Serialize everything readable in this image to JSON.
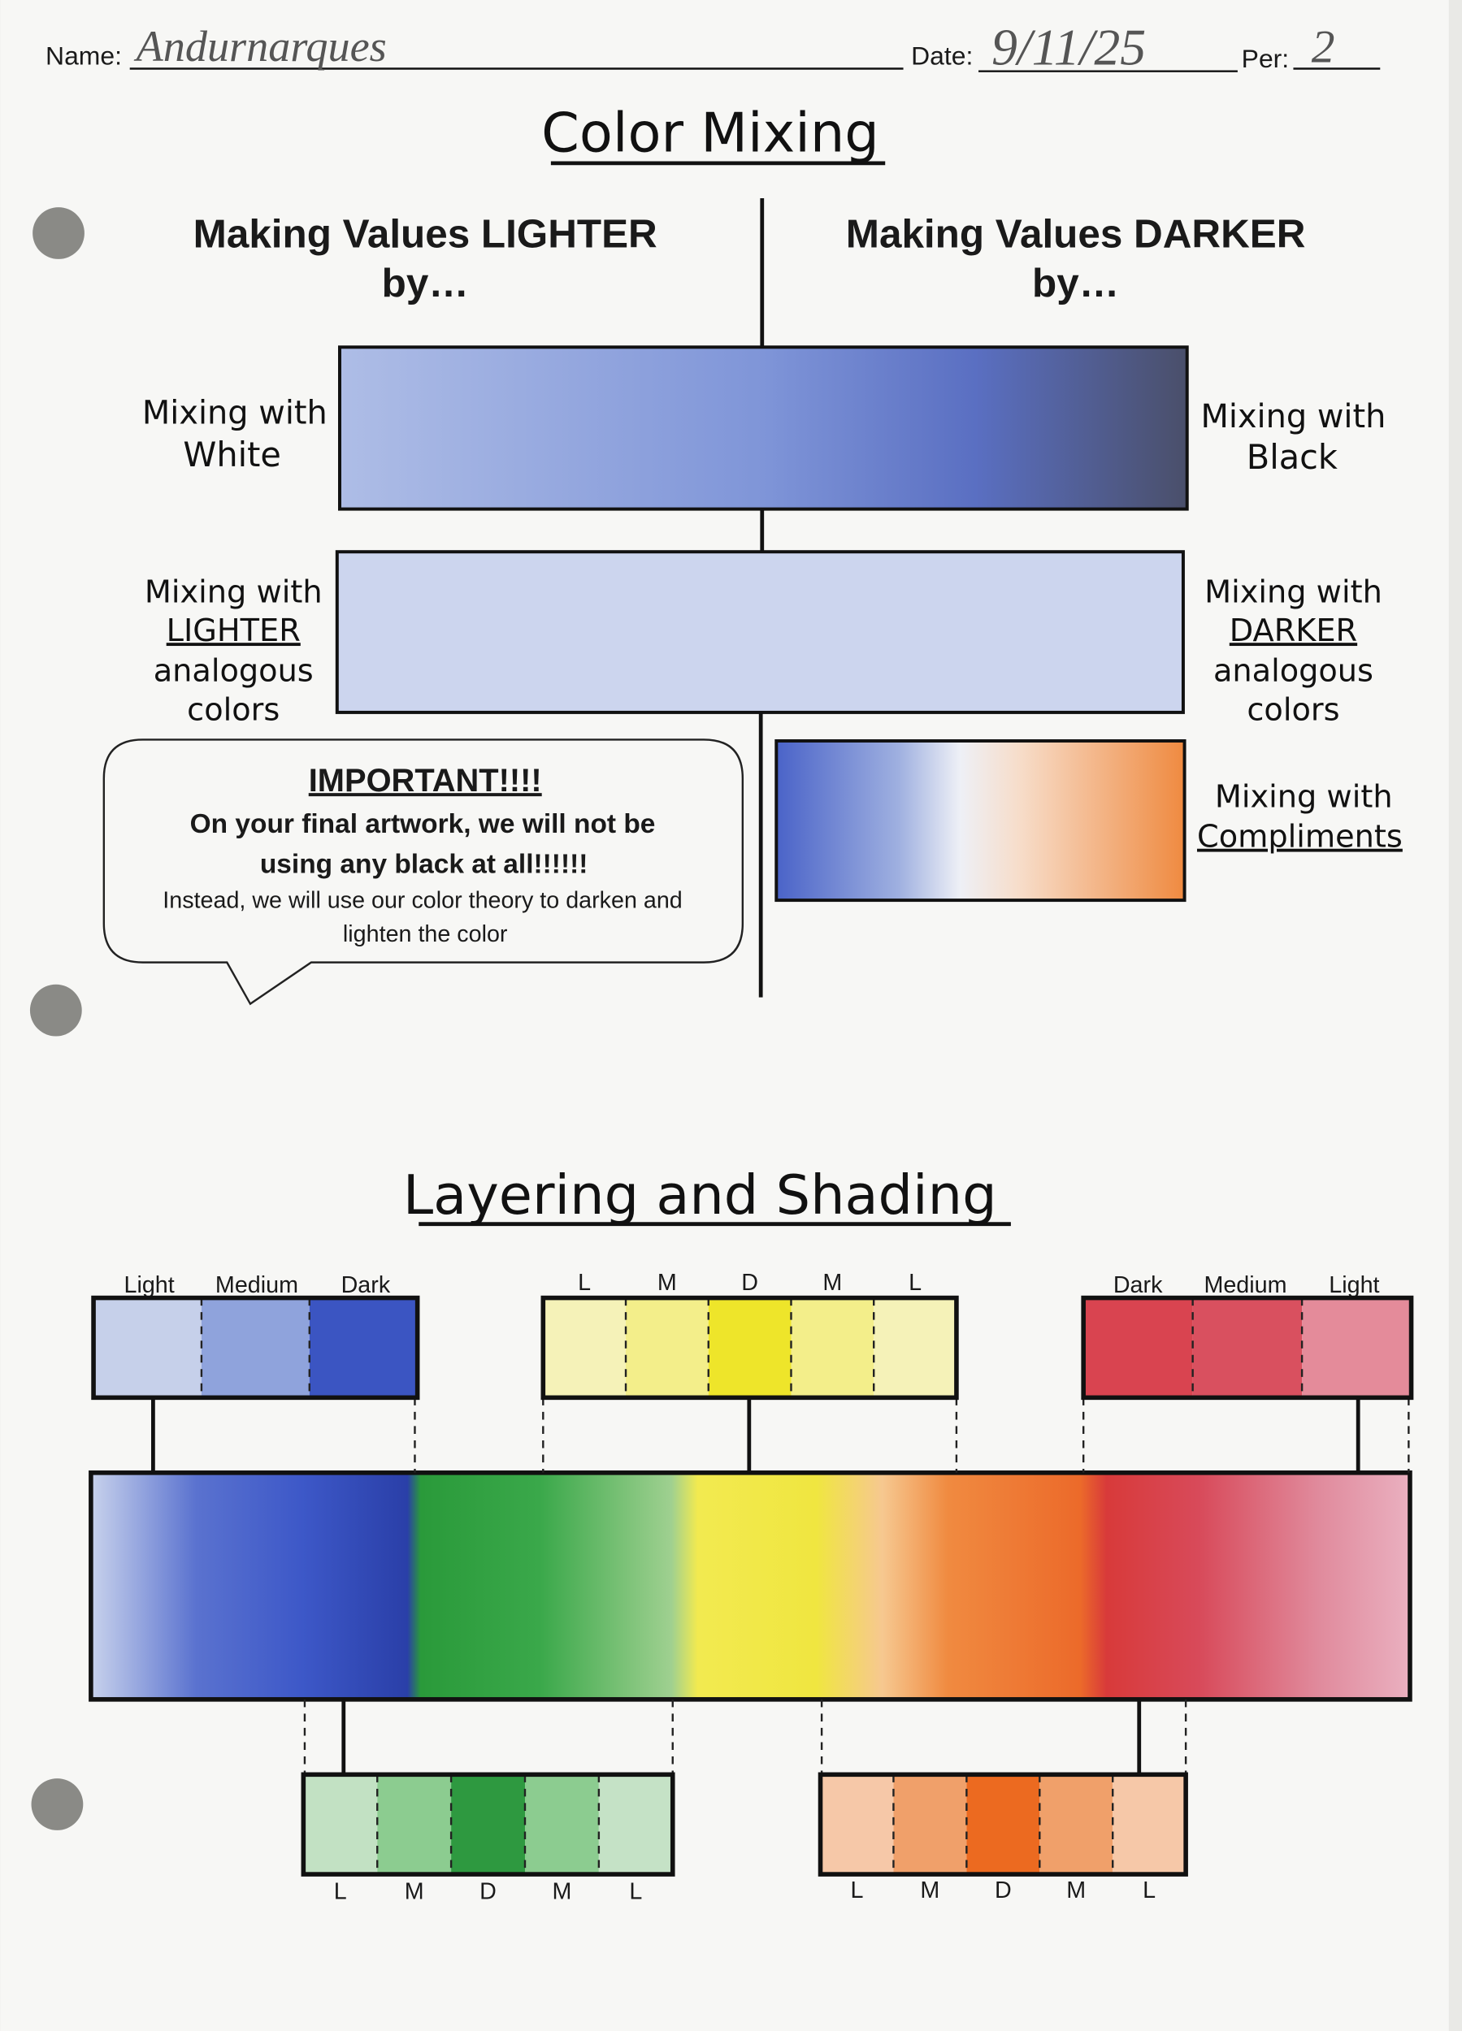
{
  "header": {
    "name_label": "Name:",
    "name": "Andurnarques",
    "date_label": "Date:",
    "date": "9/11/25",
    "period_label": "Per:",
    "period": "2"
  },
  "color_mixing": {
    "title": "Color Mixing",
    "lighter_heading": [
      "Making Values LIGHTER",
      "by…"
    ],
    "darker_heading": [
      "Making Values DARKER",
      "by…"
    ],
    "white": [
      "Mixing with",
      "White"
    ],
    "black": [
      "Mixing with",
      "Black"
    ],
    "lighter_analogous": [
      "Mixing with",
      "LIGHTER",
      "analogous",
      "colors"
    ],
    "darker_analogous": [
      "Mixing with",
      "DARKER",
      "analogous",
      "colors"
    ],
    "compliments": [
      "Mixing with",
      "Compliments"
    ],
    "callout": {
      "title": "IMPORTANT!!!!",
      "lines": [
        "On your final artwork, we will not be",
        "using any black at all!!!!!!"
      ],
      "note": [
        "Instead, we will use our color theory to darken and",
        "lighten the color"
      ]
    }
  },
  "layering": {
    "title": "Layering and Shading",
    "top_blue": [
      "Light",
      "Medium",
      "Dark"
    ],
    "top_yellow": [
      "L",
      "M",
      "D",
      "M",
      "L"
    ],
    "top_red": [
      "Dark",
      "Medium",
      "Light"
    ],
    "bottom_green": [
      "L",
      "M",
      "D",
      "M",
      "L"
    ],
    "bottom_orange": [
      "L",
      "M",
      "D",
      "M",
      "L"
    ]
  }
}
